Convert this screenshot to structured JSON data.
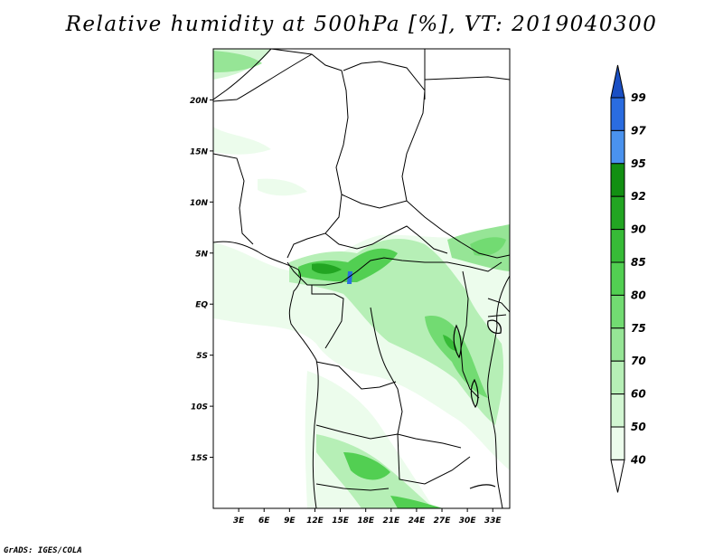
{
  "title": "Relative humidity at 500hPa [%], VT: 2019040300",
  "credit": "GrADS: IGES/COLA",
  "map": {
    "lat_ticks": [
      "20N",
      "15N",
      "10N",
      "5N",
      "EQ",
      "5S",
      "10S",
      "15S"
    ],
    "lon_ticks": [
      "3E",
      "6E",
      "9E",
      "12E",
      "15E",
      "18E",
      "21E",
      "24E",
      "27E",
      "30E",
      "33E"
    ],
    "lon_range": [
      0,
      35
    ],
    "lat_range": [
      -20,
      25
    ]
  },
  "colorbar": {
    "labels": [
      "99",
      "97",
      "95",
      "92",
      "90",
      "85",
      "80",
      "75",
      "70",
      "60",
      "50",
      "40"
    ],
    "colors": [
      "#1a4fc4",
      "#2a6ce0",
      "#4a92ee",
      "#128f12",
      "#22a522",
      "#37bb37",
      "#52cf52",
      "#72db72",
      "#96e596",
      "#b6efb6",
      "#d2f6d2",
      "#ecfcec"
    ],
    "low_color": "#ffffff"
  }
}
